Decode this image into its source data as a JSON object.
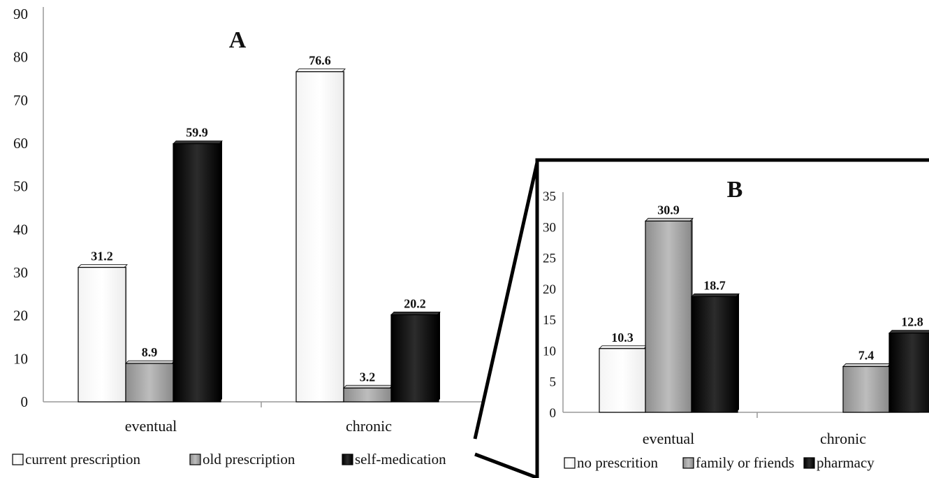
{
  "chart_data": [
    {
      "type": "bar",
      "title": "A",
      "categories": [
        "eventual",
        "chronic"
      ],
      "ylim": [
        0,
        90
      ],
      "yticks": [
        "0",
        "10",
        "20",
        "30",
        "40",
        "50",
        "60",
        "70",
        "80",
        "90"
      ],
      "grid": false,
      "legend_position": "bottom",
      "series": [
        {
          "name": "current prescription",
          "values": [
            31.2,
            76.6
          ],
          "labels": [
            "31.2",
            "76.6"
          ],
          "color": "#ffffff"
        },
        {
          "name": "old prescription",
          "values": [
            8.9,
            3.2
          ],
          "labels": [
            "8.9",
            "3.2"
          ],
          "color": "#a8a8a8"
        },
        {
          "name": "self-medication",
          "values": [
            59.9,
            20.2
          ],
          "labels": [
            "59.9",
            "20.2"
          ],
          "color": "#111111"
        }
      ]
    },
    {
      "type": "bar",
      "title": "B",
      "categories": [
        "eventual",
        "chronic"
      ],
      "ylim": [
        0,
        35
      ],
      "yticks": [
        "0",
        "5",
        "10",
        "15",
        "20",
        "25",
        "30",
        "35"
      ],
      "grid": false,
      "legend_position": "bottom",
      "series": [
        {
          "name": "no prescrition",
          "values": [
            10.3,
            null
          ],
          "labels": [
            "10.3",
            ""
          ],
          "color": "#ffffff"
        },
        {
          "name": "family or friends",
          "values": [
            30.9,
            7.4
          ],
          "labels": [
            "30.9",
            "7.4"
          ],
          "color": "#a8a8a8"
        },
        {
          "name": "pharmacy",
          "values": [
            18.7,
            12.8
          ],
          "labels": [
            "18.7",
            "12.8"
          ],
          "color": "#111111"
        }
      ]
    }
  ]
}
